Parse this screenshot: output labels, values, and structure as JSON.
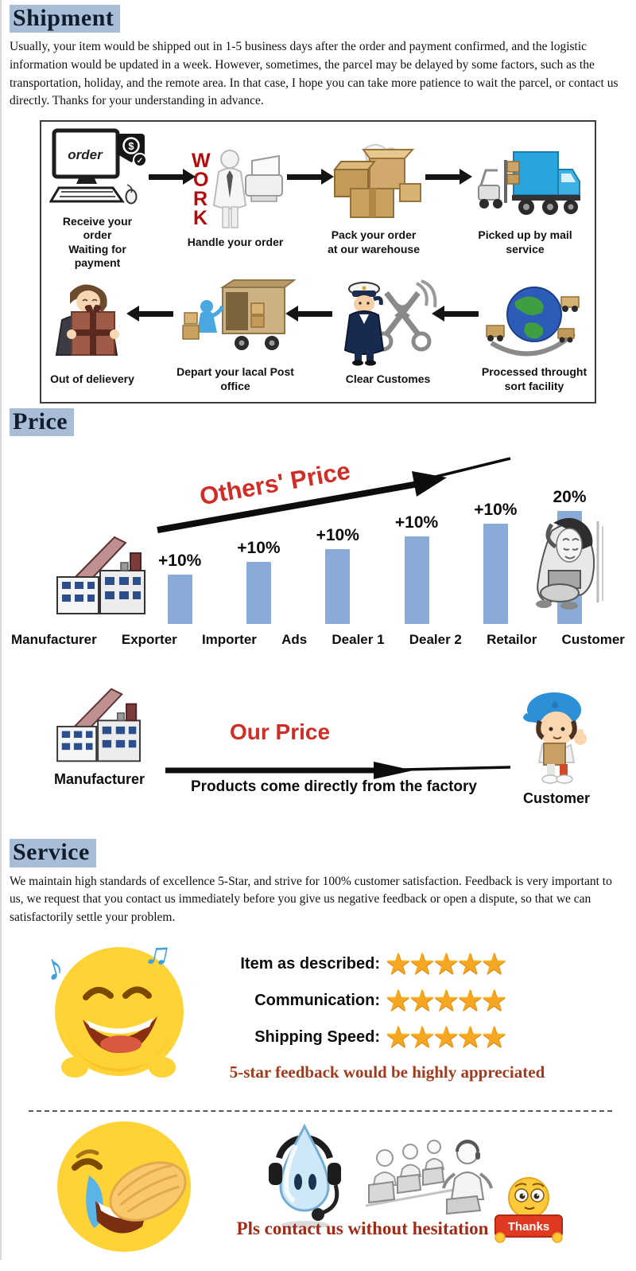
{
  "shipment": {
    "heading": "Shipment",
    "paragraph": "Usually, your item would be shipped out in 1-5 business days after the order and  payment confirmed, and the logistic information would be updated in a week. However, sometimes, the parcel may be delayed by some factors, such as the transportation, holiday, and the remote area. In that case, I hope you can take more patience to wait the parcel, or contact us directly. Thanks for your understanding in advance.",
    "order_screen_text": "order",
    "work_letters": [
      "W",
      "O",
      "R",
      "K"
    ],
    "flow_row1": [
      {
        "label": "Receive your order\nWaiting for payment"
      },
      {
        "label": "Handle your order"
      },
      {
        "label": "Pack your order\nat our warehouse"
      },
      {
        "label": "Picked up by mail service"
      }
    ],
    "flow_row2": [
      {
        "label": "Out of delievery"
      },
      {
        "label": "Depart your lacal Post office"
      },
      {
        "label": "Clear Customes"
      },
      {
        "label": "Processed throught\nsort facility"
      }
    ]
  },
  "price": {
    "heading": "Price",
    "others_title": "Others' Price",
    "our_title": "Our Price",
    "our_subtitle": "Products come directly from the factory",
    "manufacturer_label": "Manufacturer",
    "customer_label": "Customer"
  },
  "chart_data": {
    "type": "bar",
    "title": "Others' Price",
    "categories": [
      "Exporter",
      "Importer",
      "Ads",
      "Dealer 1",
      "Dealer 2",
      "Retailor"
    ],
    "values": [
      10,
      10,
      10,
      10,
      10,
      20
    ],
    "bar_labels": [
      "+10%",
      "+10%",
      "+10%",
      "+10%",
      "+10%",
      "20%"
    ],
    "axis_labels": [
      "Manufacturer",
      "Exporter",
      "Importer",
      "Ads",
      "Dealer 1",
      "Dealer 2",
      "Retailor",
      "Customer"
    ],
    "bar_color": "#8aabd8",
    "xlabel": "",
    "ylabel": ""
  },
  "service": {
    "heading": "Service",
    "paragraph": "We maintain high standards of excellence 5-Star, and strive for 100% customer satisfaction. Feedback is very important to us, we request that you contact us immediately before you give us negative feedback or open a dispute, so that we can satisfactorily settle your problem."
  },
  "feedback": {
    "ratings": [
      {
        "label": "Item as described:",
        "stars": 5
      },
      {
        "label": "Communication:",
        "stars": 5
      },
      {
        "label": "Shipping Speed:",
        "stars": 5
      }
    ],
    "note": "5-star feedback would be highly appreciated"
  },
  "contact": {
    "message": "Pls contact us without hesitation",
    "thanks_label": "Thanks"
  },
  "icons": {
    "star": "★",
    "dollar": "$",
    "check": "✓",
    "music_note_1": "♪",
    "music_note_2": "♫"
  },
  "colors": {
    "heading_highlight": "#a9bdd7",
    "bar_blue": "#8aabd8",
    "accent_red": "#d22c26",
    "note_maroon": "#a23a1e",
    "star_gold": "#f5a623"
  }
}
